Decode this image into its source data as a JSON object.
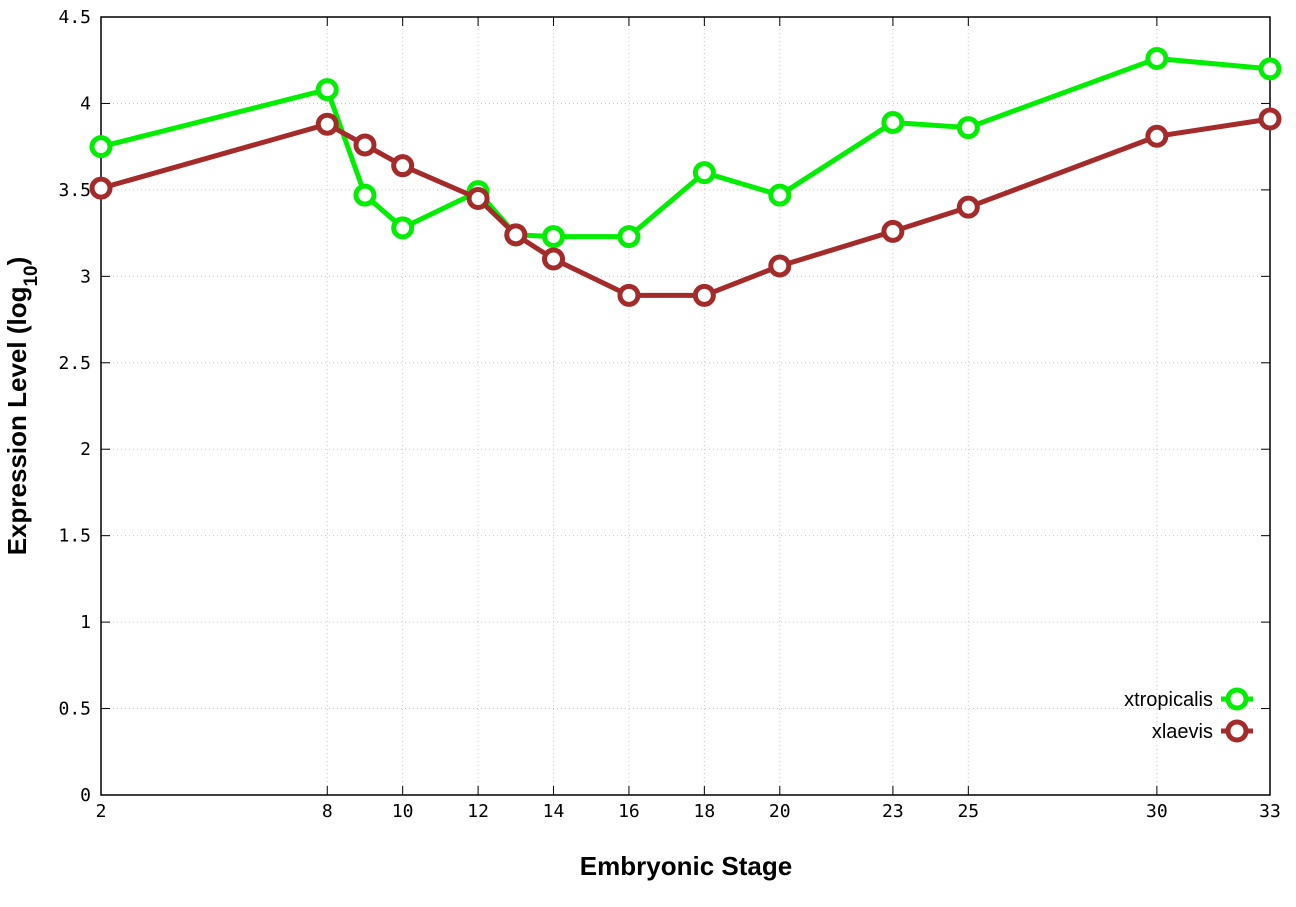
{
  "chart_data": {
    "type": "line",
    "xlabel": "Embryonic Stage",
    "ylabel_main": "Expression Level (log",
    "ylabel_sub": "10",
    "ylabel_close": ")",
    "x_ticks": [
      "2",
      "8",
      "10",
      "12",
      "14",
      "16",
      "18",
      "20",
      "23",
      "25",
      "30",
      "33"
    ],
    "y_ticks": [
      "0",
      "0.5",
      "1",
      "1.5",
      "2",
      "2.5",
      "3",
      "3.5",
      "4",
      "4.5"
    ],
    "xlim": [
      2,
      33
    ],
    "ylim": [
      0,
      4.5
    ],
    "grid": true,
    "legend_position": "bottom-right",
    "x": [
      2,
      8,
      9,
      10,
      12,
      13,
      14,
      16,
      18,
      20,
      23,
      25,
      30,
      33
    ],
    "series": [
      {
        "name": "xtropicalis",
        "color": "#00ee00",
        "values": [
          3.75,
          4.08,
          3.47,
          3.28,
          3.49,
          3.24,
          3.23,
          3.23,
          3.6,
          3.47,
          3.89,
          3.86,
          4.26,
          4.2
        ]
      },
      {
        "name": "xlaevis",
        "color": "#a52a2a",
        "values": [
          3.51,
          3.88,
          3.76,
          3.64,
          3.45,
          3.24,
          3.1,
          2.89,
          2.89,
          3.06,
          3.26,
          3.4,
          3.81,
          3.91
        ]
      }
    ]
  }
}
